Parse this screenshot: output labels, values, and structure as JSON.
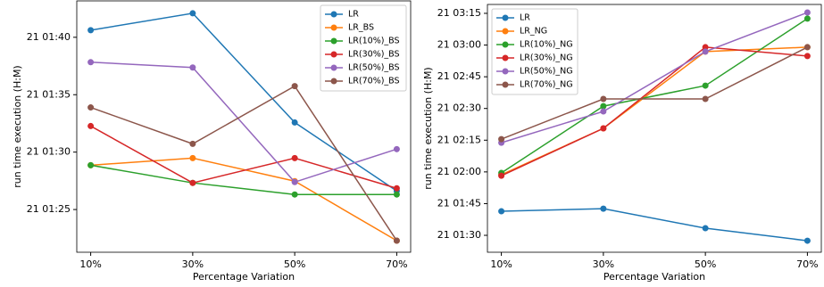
{
  "chart_data": [
    {
      "type": "line",
      "xlabel": "Percentage Variation",
      "ylabel": "run time execution (H:M)",
      "categories": [
        "10%",
        "30%",
        "50%",
        "70%"
      ],
      "ylim": [
        81.28,
        103.17
      ],
      "yticks": [
        {
          "value": 85,
          "label": "21 01:25"
        },
        {
          "value": 90,
          "label": "21 01:30"
        },
        {
          "value": 95,
          "label": "21 01:35"
        },
        {
          "value": 100,
          "label": "21 01:40"
        }
      ],
      "legend": "upper right",
      "series": [
        {
          "name": "LR",
          "color": "#1f77b4",
          "values": [
            100.62,
            102.09,
            92.58,
            86.62
          ]
        },
        {
          "name": "LR_BS",
          "color": "#ff7f0e",
          "values": [
            88.86,
            89.48,
            87.47,
            82.29
          ]
        },
        {
          "name": "LR(10%)_BS",
          "color": "#2ca02c",
          "values": [
            88.86,
            87.32,
            86.31,
            86.31
          ]
        },
        {
          "name": "LR(30%)_BS",
          "color": "#d62728",
          "values": [
            92.27,
            87.32,
            89.48,
            86.85
          ]
        },
        {
          "name": "LR(50%)_BS",
          "color": "#9467bd",
          "values": [
            97.83,
            97.37,
            87.39,
            90.26
          ]
        },
        {
          "name": "LR(70%)_BS",
          "color": "#8c564b",
          "values": [
            93.89,
            90.72,
            95.75,
            82.29
          ]
        }
      ]
    },
    {
      "type": "line",
      "xlabel": "Percentage Variation",
      "ylabel": "run time execution (H:M)",
      "categories": [
        "10%",
        "30%",
        "50%",
        "70%"
      ],
      "ylim": [
        82.0,
        199.2
      ],
      "yticks": [
        {
          "value": 90,
          "label": "21 01:30"
        },
        {
          "value": 105,
          "label": "21 01:45"
        },
        {
          "value": 120,
          "label": "21 02:00"
        },
        {
          "value": 135,
          "label": "21 02:15"
        },
        {
          "value": 150,
          "label": "21 02:30"
        },
        {
          "value": 165,
          "label": "21 02:45"
        },
        {
          "value": 180,
          "label": "21 03:00"
        },
        {
          "value": 195,
          "label": "21 03:15"
        }
      ],
      "legend": "upper left",
      "series": [
        {
          "name": "LR",
          "color": "#1f77b4",
          "values": [
            101.37,
            102.6,
            93.36,
            87.45
          ]
        },
        {
          "name": "LR_NG",
          "color": "#ff7f0e",
          "values": [
            118.66,
            140.6,
            176.9,
            179.0
          ]
        },
        {
          "name": "LR(10%)_NG",
          "color": "#2ca02c",
          "values": [
            119.5,
            151.1,
            160.8,
            192.5
          ]
        },
        {
          "name": "LR(30%)_NG",
          "color": "#d62728",
          "values": [
            118.2,
            140.6,
            179.0,
            174.8
          ]
        },
        {
          "name": "LR(50%)_NG",
          "color": "#9467bd",
          "values": [
            133.8,
            148.6,
            176.9,
            195.4
          ]
        },
        {
          "name": "LR(70%)_NG",
          "color": "#8c564b",
          "values": [
            135.5,
            154.5,
            154.5,
            179.0
          ]
        }
      ]
    }
  ]
}
